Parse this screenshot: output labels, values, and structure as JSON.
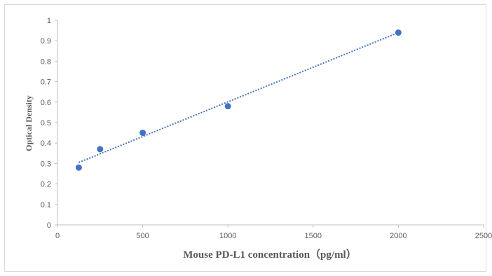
{
  "chart_data": {
    "type": "scatter",
    "xlabel": "Mouse PD-L1 concentration（pg/ml）",
    "ylabel": "Optical Density",
    "xlim": [
      0,
      2500
    ],
    "ylim": [
      0,
      1
    ],
    "x_ticks": [
      0,
      500,
      1000,
      1500,
      2000,
      2500
    ],
    "y_ticks": [
      0,
      0.1,
      0.2,
      0.3,
      0.4,
      0.5,
      0.6,
      0.7,
      0.8,
      0.9,
      1
    ],
    "x_tick_labels": [
      "0",
      "500",
      "1000",
      "1500",
      "2000",
      "2500"
    ],
    "y_tick_labels": [
      "0",
      "0.1",
      "0.2",
      "0.3",
      "0.4",
      "0.5",
      "0.6",
      "0.7",
      "0.8",
      "0.9",
      "1"
    ],
    "grid": false,
    "legend": "none",
    "series": [
      {
        "x": [
          125,
          250,
          500,
          1000,
          2000
        ],
        "y": [
          0.28,
          0.37,
          0.45,
          0.58,
          0.94
        ],
        "color": "#4472c4",
        "trendline": {
          "type": "linear",
          "style": "dotted",
          "from": [
            125,
            0.305
          ],
          "to": [
            2000,
            0.94
          ]
        }
      }
    ]
  }
}
